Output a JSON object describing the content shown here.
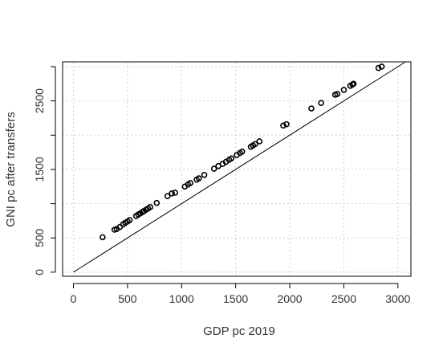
{
  "chart_data": {
    "type": "scatter",
    "title": "",
    "xlabel": "GDP pc 2019",
    "ylabel": "GNI pc after transfers",
    "xlim": [
      -100,
      3120
    ],
    "ylim": [
      -60,
      3070
    ],
    "xticks": [
      0,
      500,
      1000,
      1500,
      2000,
      2500,
      3000
    ],
    "yticks": [
      0,
      500,
      1500,
      2500
    ],
    "yticks_unlabeled": [
      1000,
      2000,
      3000
    ],
    "grid": true,
    "reference_line": {
      "type": "identity",
      "label": "y = x"
    },
    "series": [
      {
        "x": [
          270,
          380,
          400,
          430,
          460,
          480,
          500,
          520,
          580,
          600,
          620,
          640,
          650,
          670,
          690,
          710,
          770,
          870,
          910,
          940,
          1030,
          1060,
          1080,
          1140,
          1160,
          1210,
          1300,
          1340,
          1380,
          1410,
          1440,
          1460,
          1510,
          1540,
          1560,
          1640,
          1660,
          1680,
          1720,
          1940,
          1970,
          2200,
          2290,
          2420,
          2440,
          2500,
          2560,
          2580,
          2590,
          2820,
          2850
        ],
        "y": [
          510,
          620,
          630,
          660,
          700,
          720,
          740,
          760,
          820,
          840,
          860,
          880,
          890,
          910,
          930,
          950,
          1010,
          1110,
          1150,
          1160,
          1250,
          1280,
          1300,
          1350,
          1370,
          1420,
          1510,
          1550,
          1580,
          1610,
          1640,
          1660,
          1710,
          1740,
          1760,
          1830,
          1850,
          1870,
          1910,
          2140,
          2160,
          2390,
          2470,
          2590,
          2600,
          2660,
          2720,
          2740,
          2750,
          2980,
          3000
        ]
      }
    ]
  }
}
